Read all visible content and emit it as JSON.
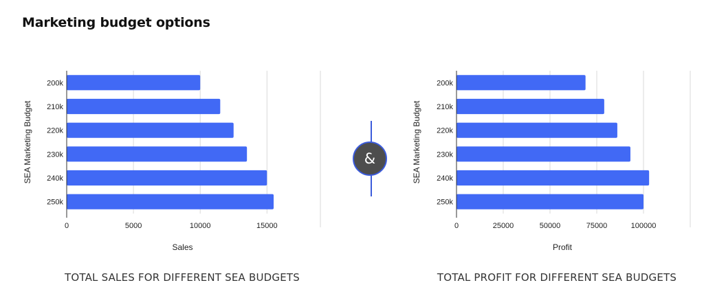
{
  "page": {
    "title": "Marketing budget options"
  },
  "connector": {
    "symbol": "&",
    "accent": "#3b5bdb",
    "badge_color": "#4d4d4d"
  },
  "chart_data": [
    {
      "id": "sales",
      "type": "bar",
      "orientation": "horizontal",
      "categories": [
        "200k",
        "210k",
        "220k",
        "230k",
        "240k",
        "250k"
      ],
      "series": [
        {
          "values": [
            10000,
            11500,
            12500,
            13500,
            15000,
            15500
          ],
          "color": "#4169f5"
        }
      ],
      "xlabel": "Sales",
      "ylabel": "SEA Marketing Budget",
      "xlim": [
        0,
        19000
      ],
      "xticks": [
        0,
        5000,
        10000,
        15000
      ],
      "grid": true,
      "legend": "none",
      "caption": "TOTAL SALES FOR DIFFERENT SEA BUDGETS"
    },
    {
      "id": "profit",
      "type": "bar",
      "orientation": "horizontal",
      "categories": [
        "200k",
        "210k",
        "220k",
        "230k",
        "240k",
        "250k"
      ],
      "series": [
        {
          "values": [
            69000,
            79000,
            86000,
            93000,
            103000,
            100000
          ],
          "color": "#4169f5"
        }
      ],
      "xlabel": "Profit",
      "ylabel": "SEA Marketing Budget",
      "xlim": [
        0,
        125000
      ],
      "xticks": [
        0,
        25000,
        50000,
        75000,
        100000
      ],
      "grid": true,
      "legend": "none",
      "caption": "TOTAL PROFIT FOR DIFFERENT SEA BUDGETS"
    }
  ]
}
